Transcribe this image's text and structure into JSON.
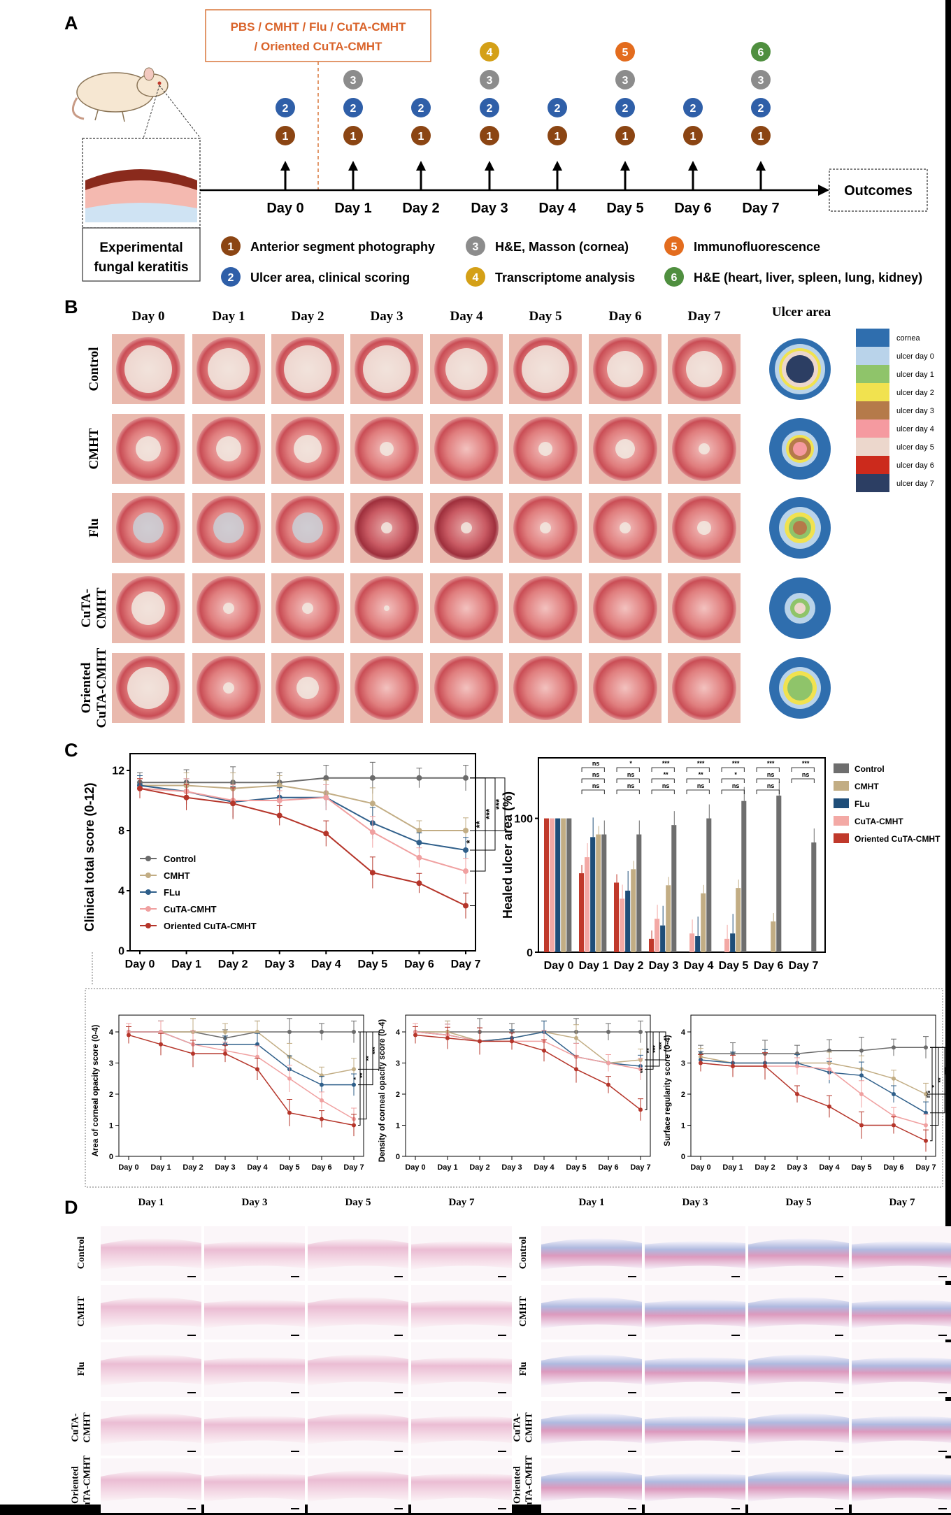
{
  "panels": {
    "A": "A",
    "B": "B",
    "C": "C",
    "D": "D"
  },
  "timeline": {
    "treatment_line1": "PBS / CMHT / Flu / CuTA-CMHT",
    "treatment_line2": "/ Oriented CuTA-CMHT",
    "days": [
      "Day 0",
      "Day 1",
      "Day 2",
      "Day 3",
      "Day 4",
      "Day 5",
      "Day 6",
      "Day 7"
    ],
    "outcomes": "Outcomes",
    "model_line1": "Experimental",
    "model_line2": "fungal keratitis",
    "markers": [
      [
        "2",
        "1"
      ],
      [
        "3",
        "2",
        "1"
      ],
      [
        "2",
        "1"
      ],
      [
        "4",
        "3",
        "2",
        "1"
      ],
      [
        "2",
        "1"
      ],
      [
        "5",
        "3",
        "2",
        "1"
      ],
      [
        "2",
        "1"
      ],
      [
        "6",
        "3",
        "2",
        "1"
      ]
    ],
    "marker_colors": {
      "1": "#8b4513",
      "2": "#2f5fa8",
      "3": "#8c8c8c",
      "4": "#d4a017",
      "5": "#e36c1e",
      "6": "#4f8f3f"
    },
    "legend": [
      {
        "num": "1",
        "text": "Anterior segment photography"
      },
      {
        "num": "2",
        "text": "Ulcer area, clinical scoring"
      },
      {
        "num": "3",
        "text": "H&E, Masson  (cornea)"
      },
      {
        "num": "4",
        "text": "Transcriptome analysis"
      },
      {
        "num": "5",
        "text": "Immunofluorescence"
      },
      {
        "num": "6",
        "text": "H&E (heart, liver, spleen, lung, kidney)"
      }
    ]
  },
  "photos": {
    "days": [
      "Day 0",
      "Day 1",
      "Day 2",
      "Day 3",
      "Day 4",
      "Day 5",
      "Day 6",
      "Day 7"
    ],
    "groups": [
      [
        "Control"
      ],
      [
        "CMHT"
      ],
      [
        "Flu"
      ],
      [
        "CuTA-",
        "CMHT"
      ],
      [
        "Oriented",
        "CuTA-CMHT"
      ]
    ],
    "ulcer_title": "Ulcer area",
    "ulcer_legend": [
      {
        "label": "cornea",
        "color": "#2f6eae"
      },
      {
        "label": "ulcer day 0",
        "color": "#b9d3ea"
      },
      {
        "label": "ulcer day 1",
        "color": "#8fc46a"
      },
      {
        "label": "ulcer day 2",
        "color": "#f1e24f"
      },
      {
        "label": "ulcer day 3",
        "color": "#b57a4a"
      },
      {
        "label": "ulcer day 4",
        "color": "#f59aa0"
      },
      {
        "label": "ulcer day 5",
        "color": "#ecd7cc"
      },
      {
        "label": "ulcer day 6",
        "color": "#cc2a1c"
      },
      {
        "label": "ulcer day 7",
        "color": "#2c3e63"
      }
    ]
  },
  "chart_data": [
    {
      "type": "line",
      "x": [
        "Day 0",
        "Day 1",
        "Day 2",
        "Day 3",
        "Day 4",
        "Day 5",
        "Day 6",
        "Day 7"
      ],
      "ylabel": "Clinical total score (0-12)",
      "ylim": [
        0,
        12
      ],
      "yticks": [
        "0",
        "4",
        "8",
        "12"
      ],
      "series": [
        {
          "name": "Control",
          "color": "#6b6b6b",
          "values": [
            11.2,
            11.2,
            11.2,
            11.2,
            11.5,
            11.5,
            11.5,
            11.5
          ]
        },
        {
          "name": "CMHT",
          "color": "#c2ad84",
          "values": [
            11.0,
            11.0,
            10.8,
            11.0,
            10.5,
            9.8,
            8.0,
            8.0
          ]
        },
        {
          "name": "FLu",
          "color": "#2f5f8a",
          "values": [
            11.0,
            10.6,
            9.9,
            10.2,
            10.2,
            8.5,
            7.2,
            6.7
          ]
        },
        {
          "name": "CuTA-CMHT",
          "color": "#f0a0a0",
          "values": [
            10.8,
            10.6,
            10.0,
            10.0,
            10.2,
            7.9,
            6.2,
            5.3
          ]
        },
        {
          "name": "Oriented CuTA-CMHT",
          "color": "#b5352a",
          "values": [
            10.8,
            10.2,
            9.8,
            9.0,
            7.8,
            5.2,
            4.5,
            3.0
          ]
        }
      ],
      "sig": [
        "*",
        "**",
        "***",
        "***"
      ],
      "legend_position": "left"
    },
    {
      "type": "bar",
      "categories": [
        "Day 0",
        "Day 1",
        "Day 2",
        "Day 3",
        "Day 4",
        "Day 5",
        "Day 6",
        "Day 7"
      ],
      "ylabel": "Healed ulcer area (%)",
      "ylim": [
        0,
        140
      ],
      "yticks": [
        "0",
        "100"
      ],
      "series": [
        {
          "name": "Control",
          "color": "#6e6e6e",
          "values": [
            100,
            88,
            88,
            95,
            100,
            113,
            117,
            82
          ]
        },
        {
          "name": "CMHT",
          "color": "#c2ad84",
          "values": [
            100,
            88,
            62,
            50,
            44,
            48,
            23,
            0
          ]
        },
        {
          "name": "FLu",
          "color": "#1f4e79",
          "values": [
            100,
            86,
            46,
            20,
            12,
            14,
            0,
            0
          ]
        },
        {
          "name": "CuTA-CMHT",
          "color": "#f3a9a5",
          "values": [
            100,
            71,
            40,
            25,
            14,
            10,
            0,
            0
          ]
        },
        {
          "name": "Oriented CuTA-CMHT",
          "color": "#c0392b",
          "values": [
            100,
            59,
            52,
            10,
            0,
            0,
            0,
            0
          ]
        }
      ],
      "sig_groups": [
        [],
        [
          "ns",
          "ns",
          "ns"
        ],
        [
          "*",
          "ns",
          "ns"
        ],
        [
          "***",
          "**",
          "ns"
        ],
        [
          "***",
          "**",
          "ns"
        ],
        [
          "***",
          "*",
          "ns"
        ],
        [
          "***",
          "ns",
          "ns"
        ],
        [
          "***",
          "ns"
        ]
      ],
      "legend_position": "right"
    },
    {
      "type": "line",
      "x": [
        "Day 0",
        "Day 1",
        "Day 2",
        "Day 3",
        "Day 4",
        "Day 5",
        "Day 6",
        "Day 7"
      ],
      "ylabel": "Area of corneal opacity score (0-4)",
      "ylim": [
        0,
        4
      ],
      "yticks": [
        "0",
        "1",
        "2",
        "3",
        "4"
      ],
      "series": [
        {
          "name": "Control",
          "color": "#6b6b6b",
          "values": [
            4.0,
            4.0,
            4.0,
            3.8,
            4.0,
            4.0,
            4.0,
            4.0
          ]
        },
        {
          "name": "CMHT",
          "color": "#c2ad84",
          "values": [
            4.0,
            4.0,
            4.0,
            4.0,
            4.0,
            3.2,
            2.6,
            2.8
          ]
        },
        {
          "name": "FLu",
          "color": "#2f5f8a",
          "values": [
            4.0,
            4.0,
            3.6,
            3.6,
            3.6,
            2.8,
            2.3,
            2.3
          ]
        },
        {
          "name": "CuTA-CMHT",
          "color": "#f0a0a0",
          "values": [
            4.0,
            4.0,
            3.6,
            3.4,
            3.2,
            2.5,
            1.8,
            1.2
          ]
        },
        {
          "name": "Oriented CuTA-CMHT",
          "color": "#b5352a",
          "values": [
            3.9,
            3.6,
            3.3,
            3.3,
            2.8,
            1.4,
            1.2,
            1.0
          ]
        }
      ],
      "sig": [
        "*",
        "**",
        "**",
        "***"
      ]
    },
    {
      "type": "line",
      "x": [
        "Day 0",
        "Day 1",
        "Day 2",
        "Day 3",
        "Day 4",
        "Day 5",
        "Day 6",
        "Day 7"
      ],
      "ylabel": "Density of corneal opacity score (0-4)",
      "ylim": [
        0,
        4
      ],
      "yticks": [
        "0",
        "1",
        "2",
        "3",
        "4"
      ],
      "series": [
        {
          "name": "Control",
          "color": "#6b6b6b",
          "values": [
            4.0,
            4.0,
            4.0,
            4.0,
            4.0,
            4.0,
            4.0,
            4.0
          ]
        },
        {
          "name": "CMHT",
          "color": "#c2ad84",
          "values": [
            4.0,
            4.0,
            3.7,
            3.8,
            4.0,
            3.8,
            3.0,
            3.1
          ]
        },
        {
          "name": "FLu",
          "color": "#2f5f8a",
          "values": [
            4.0,
            3.9,
            3.7,
            3.8,
            4.0,
            3.2,
            3.0,
            2.9
          ]
        },
        {
          "name": "CuTA-CMHT",
          "color": "#f0a0a0",
          "values": [
            4.0,
            3.9,
            3.7,
            3.7,
            3.7,
            3.2,
            3.0,
            2.8
          ]
        },
        {
          "name": "Oriented CuTA-CMHT",
          "color": "#b5352a",
          "values": [
            3.9,
            3.8,
            3.7,
            3.7,
            3.4,
            2.8,
            2.3,
            1.5
          ]
        }
      ],
      "sig": [
        "**",
        "**",
        "***",
        "***"
      ]
    },
    {
      "type": "line",
      "x": [
        "Day 0",
        "Day 1",
        "Day 2",
        "Day 3",
        "Day 4",
        "Day 5",
        "Day 6",
        "Day 7"
      ],
      "ylabel": "Surface regularity score (0-4)",
      "ylim": [
        0,
        4
      ],
      "yticks": [
        "0",
        "1",
        "2",
        "3",
        "4"
      ],
      "series": [
        {
          "name": "Control",
          "color": "#6b6b6b",
          "values": [
            3.3,
            3.3,
            3.3,
            3.3,
            3.4,
            3.4,
            3.5,
            3.5
          ]
        },
        {
          "name": "CMHT",
          "color": "#c2ad84",
          "values": [
            3.2,
            3.0,
            3.0,
            3.0,
            3.0,
            2.8,
            2.5,
            2.0
          ]
        },
        {
          "name": "FLu",
          "color": "#2f5f8a",
          "values": [
            3.1,
            3.0,
            3.0,
            3.0,
            2.7,
            2.6,
            2.0,
            1.4
          ]
        },
        {
          "name": "CuTA-CMHT",
          "color": "#f0a0a0",
          "values": [
            3.0,
            2.9,
            2.9,
            2.9,
            2.8,
            2.0,
            1.3,
            1.0
          ]
        },
        {
          "name": "Oriented CuTA-CMHT",
          "color": "#b5352a",
          "values": [
            3.0,
            2.9,
            2.9,
            2.0,
            1.6,
            1.0,
            1.0,
            0.5
          ]
        }
      ],
      "sig": [
        "ns",
        "*",
        "**",
        "***"
      ]
    }
  ],
  "histology": {
    "days": [
      "Day 1",
      "Day 3",
      "Day 5",
      "Day 7"
    ],
    "groups": [
      [
        "Control"
      ],
      [
        "CMHT"
      ],
      [
        "Flu"
      ],
      [
        "CuTA-",
        "CMHT"
      ],
      [
        "Oriented",
        "CuTA-CMHT"
      ]
    ]
  }
}
